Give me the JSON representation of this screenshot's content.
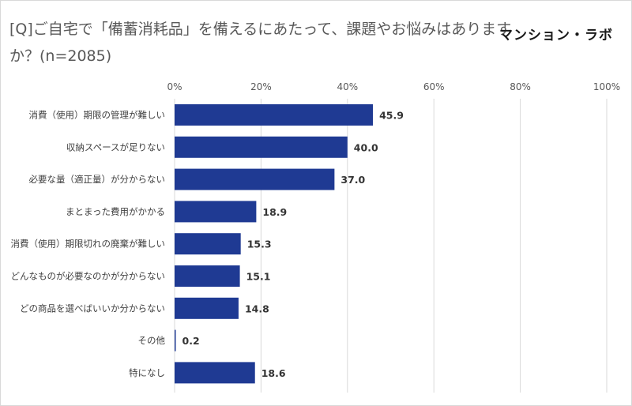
{
  "title": "[Q]ご自宅で「備蓄消耗品」を備えるにあたって、課題やお悩みはありますか？(n=2085)",
  "brand": "マンション・ラボ",
  "colors": {
    "bar": "#1f3a93",
    "grid": "#d9d9d9"
  },
  "chart_data": {
    "type": "bar",
    "orientation": "horizontal",
    "title": "[Q]ご自宅で「備蓄消耗品」を備えるにあたって、課題やお悩みはありますか？(n=2085)",
    "categories": [
      "消費（使用）期限の管理が難しい",
      "収納スペースが足りない",
      "必要な量（適正量）が分からない",
      "まとまった費用がかかる",
      "消費（使用）期限切れの廃棄が難しい",
      "どんなものが必要なのかが分からない",
      "どの商品を選べばいいか分からない",
      "その他",
      "特になし"
    ],
    "values": [
      45.9,
      40.0,
      37.0,
      18.9,
      15.3,
      15.1,
      14.8,
      0.2,
      18.6
    ],
    "value_labels": [
      "45.9",
      "40.0",
      "37.0",
      "18.9",
      "15.3",
      "15.1",
      "14.8",
      "0.2",
      "18.6"
    ],
    "xlim": [
      0,
      100
    ],
    "ticks": [
      0,
      20,
      40,
      60,
      80,
      100
    ],
    "tick_labels": [
      "0%",
      "20%",
      "40%",
      "60%",
      "80%",
      "100%"
    ],
    "grid": true,
    "legend": "none"
  }
}
